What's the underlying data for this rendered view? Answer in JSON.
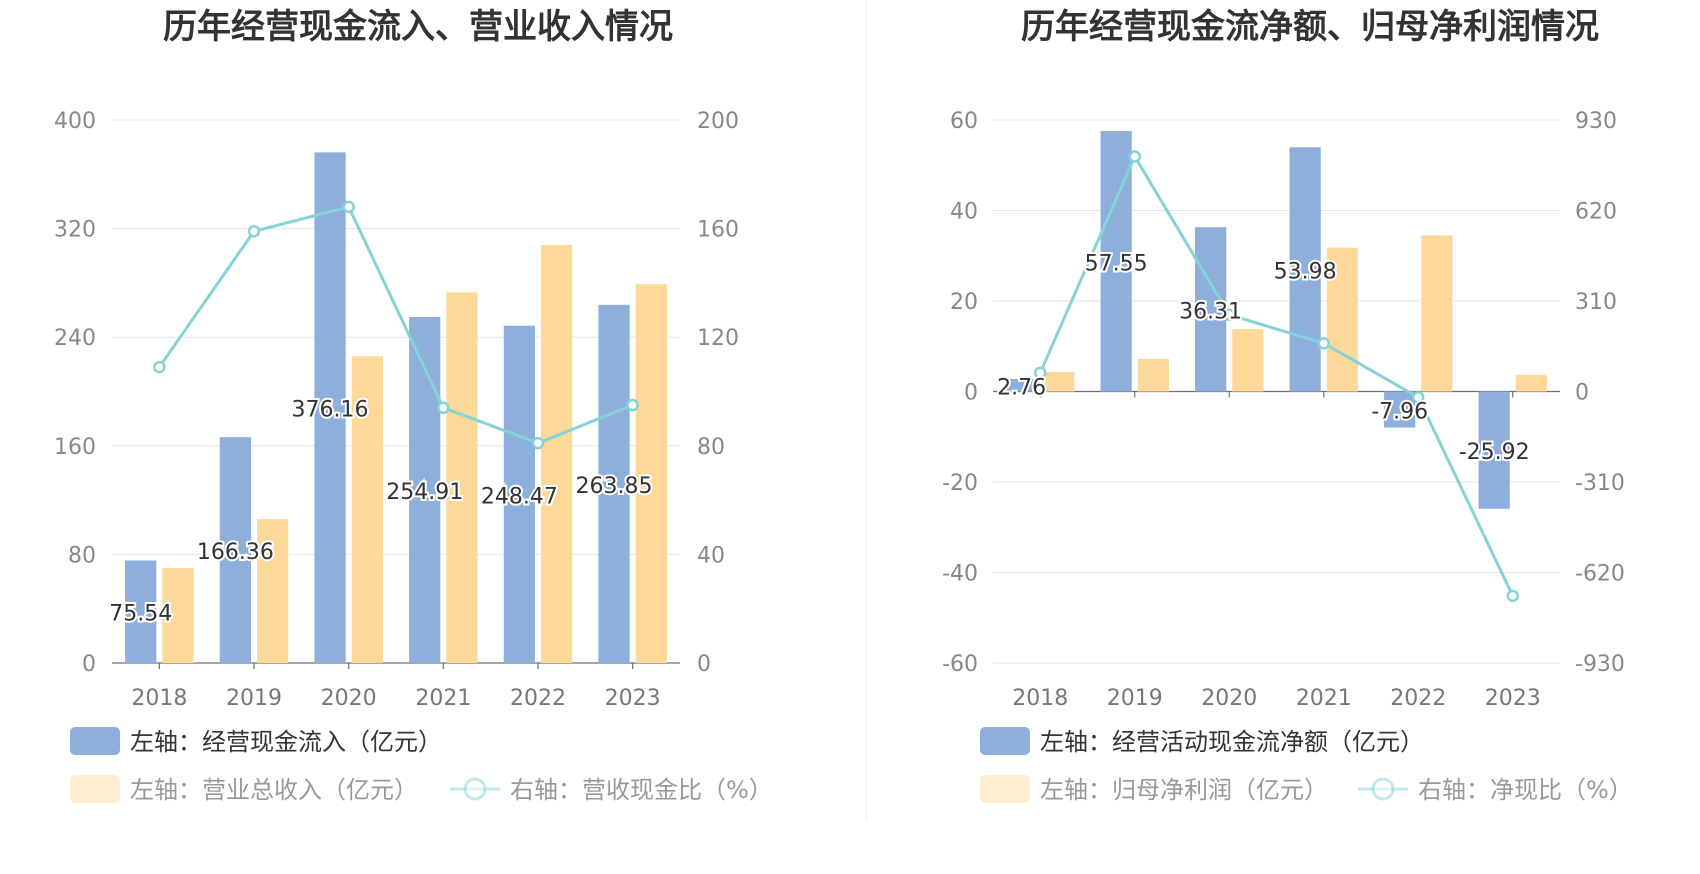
{
  "chart_data": [
    {
      "type": "bar",
      "title": "历年经营现金流入、营业收入情况",
      "categories": [
        "2018",
        "2019",
        "2020",
        "2021",
        "2022",
        "2023"
      ],
      "y_left": {
        "ticks": [
          "400",
          "320",
          "240",
          "160",
          "80",
          "0"
        ],
        "ylim": [
          0,
          400
        ]
      },
      "y_right": {
        "ticks": [
          "200",
          "160",
          "120",
          "80",
          "40",
          "0"
        ],
        "ylim": [
          0,
          200
        ]
      },
      "grid": true,
      "legend_position": "bottom-left",
      "series": [
        {
          "name": "左轴：经营现金流入（亿元）",
          "type": "bar",
          "axis": "left",
          "color": "#8eaedb",
          "values": [
            75.54,
            166.36,
            376.16,
            254.91,
            248.47,
            263.85
          ],
          "labels": [
            "75.54",
            "166.36",
            "376.16",
            "254.91",
            "248.47",
            "263.85"
          ]
        },
        {
          "name": "左轴：营业总收入（亿元）",
          "type": "bar",
          "axis": "left",
          "color": "#fdd899",
          "values": [
            70,
            106,
            226,
            273,
            308,
            279
          ]
        },
        {
          "name": "右轴：营收现金比（%）",
          "type": "line",
          "axis": "right",
          "color": "#85d3d7",
          "values": [
            109,
            159,
            168,
            94,
            81,
            95
          ]
        }
      ]
    },
    {
      "type": "bar",
      "title": "历年经营现金流净额、归母净利润情况",
      "categories": [
        "2018",
        "2019",
        "2020",
        "2021",
        "2022",
        "2023"
      ],
      "y_left": {
        "ticks": [
          "60",
          "40",
          "20",
          "0",
          "-20",
          "-40",
          "-60"
        ],
        "ylim": [
          -60,
          60
        ]
      },
      "y_right": {
        "ticks": [
          "930",
          "620",
          "310",
          "0",
          "-310",
          "-620",
          "-930"
        ],
        "ylim": [
          -930,
          930
        ]
      },
      "grid": true,
      "legend_position": "bottom-left",
      "series": [
        {
          "name": "左轴：经营活动现金流净额（亿元）",
          "type": "bar",
          "axis": "left",
          "color": "#8eaedb",
          "values": [
            2.76,
            57.55,
            36.31,
            53.98,
            -7.96,
            -25.92
          ],
          "labels": [
            "2.76",
            "57.55",
            "36.31",
            "53.98",
            "-7.96",
            "-25.92"
          ]
        },
        {
          "name": "左轴：归母净利润（亿元）",
          "type": "bar",
          "axis": "left",
          "color": "#fdd899",
          "values": [
            4.3,
            7.2,
            13.8,
            31.8,
            34.5,
            3.7
          ]
        },
        {
          "name": "右轴：净现比（%）",
          "type": "line",
          "axis": "right",
          "color": "#85d3d7",
          "values": [
            64,
            805,
            263,
            165,
            -20,
            -700
          ]
        }
      ]
    }
  ]
}
